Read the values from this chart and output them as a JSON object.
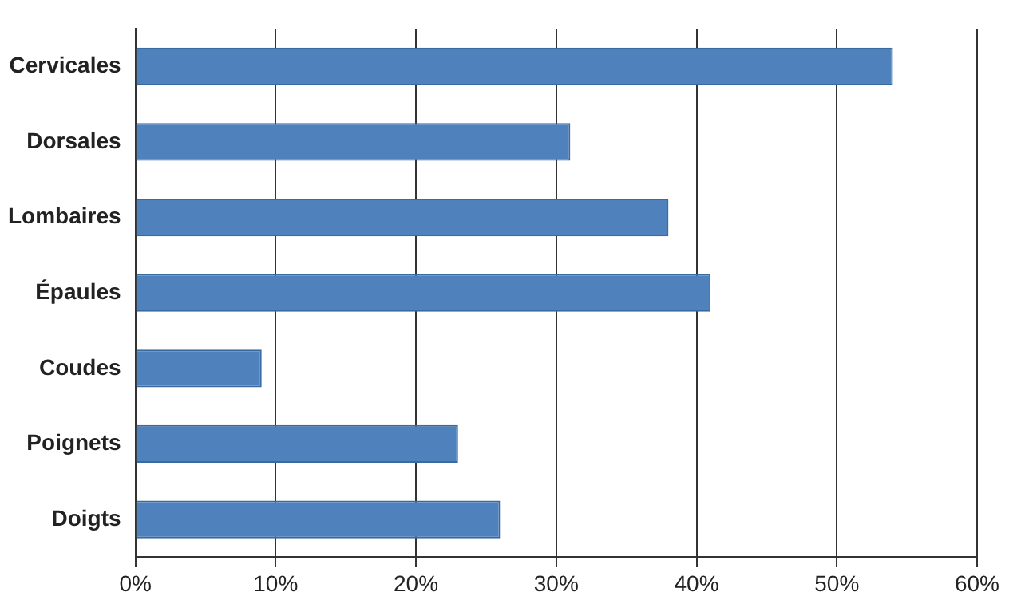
{
  "chart_data": {
    "type": "bar",
    "orientation": "horizontal",
    "categories": [
      "Cervicales",
      "Dorsales",
      "Lombaires",
      "Épaules",
      "Coudes",
      "Poignets",
      "Doigts"
    ],
    "values": [
      54,
      31,
      38,
      41,
      9,
      23,
      26
    ],
    "color": "#4f81bd",
    "xlim": [
      0,
      60
    ],
    "xticks": [
      {
        "value": 0,
        "label": "0%"
      },
      {
        "value": 10,
        "label": "10%"
      },
      {
        "value": 20,
        "label": "20%"
      },
      {
        "value": 30,
        "label": "30%"
      },
      {
        "value": 40,
        "label": "40%"
      },
      {
        "value": 50,
        "label": "50%"
      },
      {
        "value": 60,
        "label": "60%"
      }
    ],
    "grid": "x",
    "legend": false
  }
}
